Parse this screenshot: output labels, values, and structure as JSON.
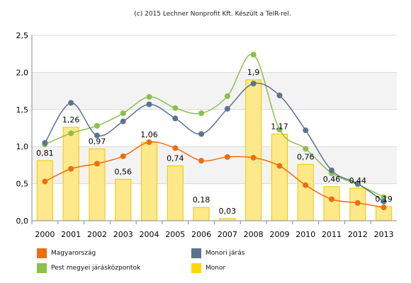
{
  "credit": "(c) 2015 Lechner Nonprofit Kft. Készült a TeIR-rel.",
  "chart_data": {
    "type": "bar",
    "categories": [
      "2000",
      "2001",
      "2002",
      "2003",
      "2004",
      "2005",
      "2006",
      "2007",
      "2008",
      "2009",
      "2010",
      "2011",
      "2012",
      "2013"
    ],
    "ylim": [
      0,
      2.5
    ],
    "yticks": [
      "0,0",
      "0,5",
      "1,0",
      "1,5",
      "2,0",
      "2,5"
    ],
    "grid": true,
    "legend_position": "bottom",
    "bar_series": {
      "name": "Monor",
      "color": "#ffd700",
      "values": [
        0.81,
        1.26,
        0.97,
        0.56,
        1.06,
        0.74,
        0.18,
        0.03,
        1.9,
        1.17,
        0.76,
        0.46,
        0.44,
        0.19
      ],
      "labels": [
        "0,81",
        "1,26",
        "0,97",
        "0,56",
        "1,06",
        "0,74",
        "0,18",
        "0,03",
        "1,9",
        "1,17",
        "0,76",
        "0,46",
        "0,44",
        "0,19"
      ]
    },
    "line_series": [
      {
        "name": "Magyarország",
        "color": "#f26b0f",
        "values": [
          0.53,
          0.7,
          0.77,
          0.87,
          1.06,
          0.98,
          0.81,
          0.86,
          0.85,
          0.74,
          0.48,
          0.29,
          0.24,
          0.18
        ]
      },
      {
        "name": "Monori járás",
        "color": "#5b7390",
        "values": [
          1.05,
          1.59,
          1.15,
          1.34,
          1.57,
          1.38,
          1.17,
          1.51,
          1.85,
          1.69,
          1.22,
          0.68,
          0.5,
          0.26
        ]
      },
      {
        "name": "Pest megyei járásközpontok",
        "color": "#8cc04b",
        "values": [
          1.03,
          1.18,
          1.28,
          1.45,
          1.67,
          1.52,
          1.45,
          1.68,
          2.24,
          1.23,
          0.97,
          0.64,
          0.49,
          0.32
        ]
      }
    ]
  },
  "legend": [
    {
      "label": "Magyarország",
      "color": "#f26b0f"
    },
    {
      "label": "Monori járás",
      "color": "#5b7390"
    },
    {
      "label": "Pest megyei járásközpontok",
      "color": "#8cc04b"
    },
    {
      "label": "Monor",
      "color": "#ffd700"
    }
  ]
}
